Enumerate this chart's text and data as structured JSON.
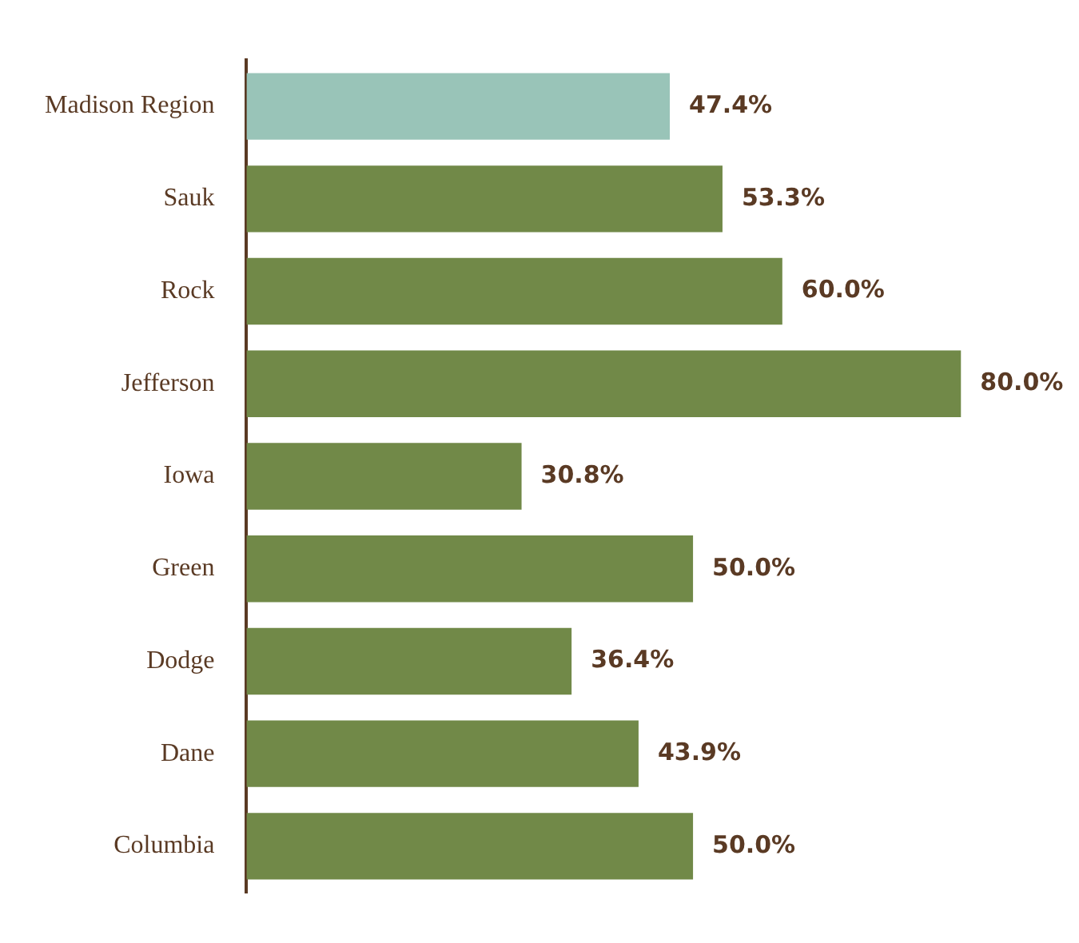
{
  "chart_data": {
    "type": "bar",
    "orientation": "horizontal",
    "categories": [
      "Madison Region",
      "Sauk",
      "Rock",
      "Jefferson",
      "Iowa",
      "Green",
      "Dodge",
      "Dane",
      "Columbia"
    ],
    "values": [
      47.4,
      53.3,
      60.0,
      80.0,
      30.8,
      50.0,
      36.4,
      43.9,
      50.0
    ],
    "colors": [
      "#99c4b8",
      "#718948",
      "#718948",
      "#718948",
      "#718948",
      "#718948",
      "#718948",
      "#718948",
      "#718948"
    ],
    "value_labels": [
      "47.4%",
      "53.3%",
      "60.0%",
      "80.0%",
      "30.8%",
      "50.0%",
      "36.4%",
      "43.9%",
      "50.0%"
    ],
    "grid": false,
    "legend": false,
    "tick_labels": "y"
  }
}
